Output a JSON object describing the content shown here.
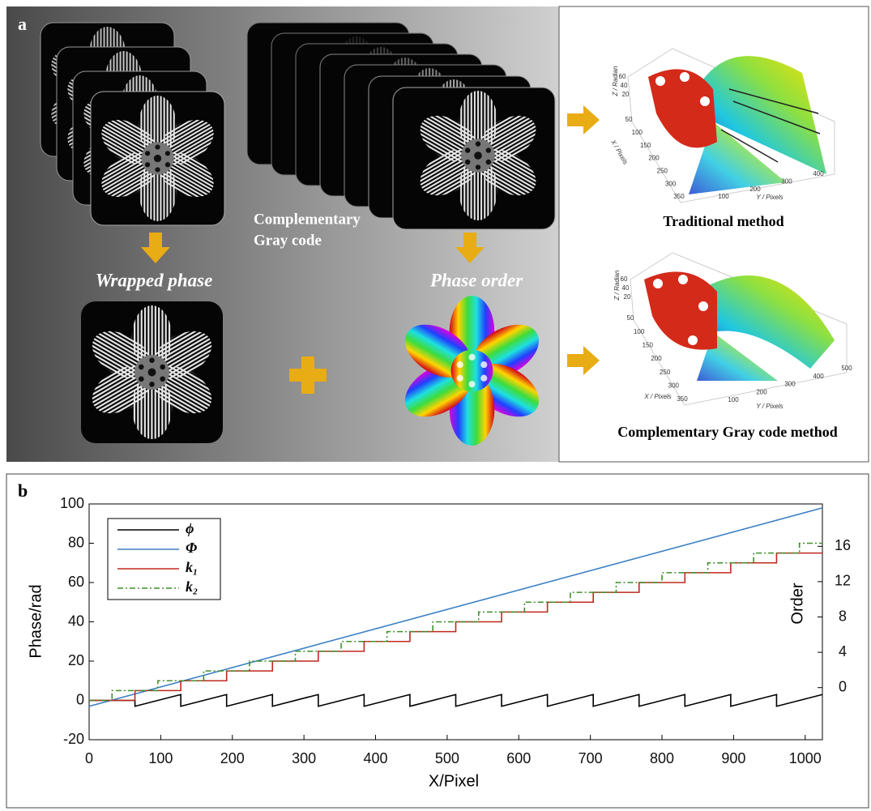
{
  "panel_a": {
    "label": "a",
    "stack_label": [
      "Complementary",
      "Gray code"
    ],
    "wrapped_label": "Wrapped phase",
    "order_label": "Phase order",
    "traditional": {
      "title": "Traditional method",
      "z_label": "Z / Radian",
      "x_label": "X / Pixels",
      "y_label": "Y / Pixels",
      "z_ticks": [
        60,
        40,
        20
      ],
      "x_ticks": [
        50,
        100,
        150,
        200,
        250,
        300,
        350
      ],
      "y_ticks": [
        100,
        200,
        300,
        400
      ]
    },
    "complementary": {
      "title": "Complementary Gray code method",
      "z_label": "Z / Radian",
      "x_label": "X / Pixels",
      "y_label": "Y / Pixels",
      "z_ticks": [
        60,
        40,
        20
      ],
      "x_ticks": [
        50,
        100,
        150,
        200,
        250,
        300,
        350
      ],
      "y_ticks": [
        100,
        200,
        300,
        400,
        500
      ]
    }
  },
  "chart_data": {
    "type": "line",
    "panel_label": "b",
    "x_label": "X/Pixel",
    "y_label": "Phase/rad",
    "y2_label": "Order",
    "xlim": [
      0,
      1024
    ],
    "xticks": [
      0,
      100,
      200,
      300,
      400,
      500,
      600,
      700,
      800,
      900,
      1000
    ],
    "ylim": [
      -20,
      100
    ],
    "yticks": [
      -20,
      0,
      20,
      40,
      60,
      80,
      100
    ],
    "y2lim": [
      -5.9,
      20.8
    ],
    "y2ticks": [
      0,
      4,
      8,
      12,
      16
    ],
    "legend": "upper left",
    "series": [
      {
        "name": "ϕ",
        "color": "#000000",
        "x": [
          0,
          64,
          64,
          128,
          128,
          192,
          192,
          256,
          256,
          320,
          320,
          384,
          384,
          448,
          448,
          512,
          512,
          576,
          576,
          640,
          640,
          704,
          704,
          768,
          768,
          832,
          832,
          896,
          896,
          960,
          960,
          1024
        ],
        "values": [
          0,
          0,
          -3,
          3,
          -3,
          3,
          -3,
          3,
          -3,
          3,
          -3,
          3,
          -3,
          3,
          -3,
          3,
          -3,
          3,
          -3,
          3,
          -3,
          3,
          -3,
          3,
          -3,
          3,
          -3,
          3,
          -3,
          3,
          -3,
          3
        ]
      },
      {
        "name": "Φ",
        "color": "#3a7fc4",
        "x": [
          0,
          1024
        ],
        "values": [
          -3,
          98
        ]
      },
      {
        "name": "k₁",
        "color": "#c0281e",
        "x": [
          0,
          64,
          64,
          128,
          128,
          192,
          192,
          256,
          256,
          320,
          320,
          384,
          384,
          448,
          448,
          512,
          512,
          576,
          576,
          640,
          640,
          704,
          704,
          768,
          768,
          832,
          832,
          896,
          896,
          960,
          960,
          1024
        ],
        "values": [
          0,
          0,
          5,
          5,
          10,
          10,
          15,
          15,
          20,
          20,
          25,
          25,
          30,
          30,
          35,
          35,
          40,
          40,
          45,
          45,
          50,
          50,
          55,
          55,
          60,
          60,
          65,
          65,
          70,
          70,
          75,
          75
        ]
      },
      {
        "name": "k₂",
        "color": "#3f8f2a",
        "dash": "dashdot",
        "x": [
          0,
          32,
          32,
          96,
          96,
          160,
          160,
          224,
          224,
          288,
          288,
          352,
          352,
          416,
          416,
          480,
          480,
          544,
          544,
          608,
          608,
          672,
          672,
          736,
          736,
          800,
          800,
          864,
          864,
          928,
          928,
          992,
          992,
          1024
        ],
        "values": [
          0,
          0,
          5,
          5,
          10,
          10,
          15,
          15,
          20,
          20,
          25,
          25,
          30,
          30,
          35,
          35,
          40,
          40,
          45,
          45,
          50,
          50,
          55,
          55,
          60,
          60,
          65,
          65,
          70,
          70,
          75,
          75,
          80,
          80
        ]
      }
    ]
  }
}
